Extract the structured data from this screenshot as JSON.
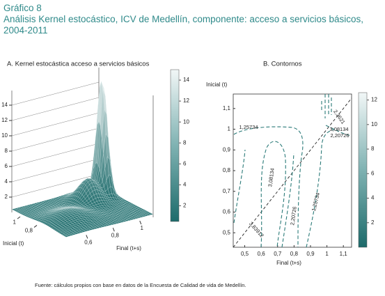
{
  "header": {
    "label": "Gráfico 8",
    "title": "Análisis Kernel estocástico, ICV de Medellín, componente: acceso a servicios básicos, 2004-2011"
  },
  "chart_data": [
    {
      "type": "surface",
      "title": "A. Kernel estocástica acceso a servicios básicos",
      "x_label": "Final (t+s)",
      "y_label": "Inicial (t)",
      "xlim": [
        0.45,
        1.1
      ],
      "ylim": [
        0.45,
        1.1
      ],
      "xticks": [
        {
          "value": 0.6,
          "label": "0,6"
        },
        {
          "value": 0.8,
          "label": "0,8"
        },
        1
      ],
      "yticks": [
        {
          "value": 0.8,
          "label": "0,8"
        },
        1
      ],
      "zlim": [
        0,
        15
      ],
      "zticks": [
        2,
        4,
        6,
        8,
        10,
        12,
        14
      ],
      "colorbar": {
        "lim": [
          0.5,
          15
        ],
        "ticks": [
          2,
          4,
          6,
          8,
          10,
          12,
          14
        ]
      },
      "color": "#1d6b6b"
    },
    {
      "type": "contour",
      "title": "B. Contornos",
      "x_label": "Final (t+s)",
      "y_label": "Inicial (t)",
      "xlim": [
        0.43,
        1.15
      ],
      "ylim": [
        0.43,
        1.17
      ],
      "xticks": [
        {
          "value": 0.5,
          "label": "0,5"
        },
        {
          "value": 0.6,
          "label": "0,6"
        },
        {
          "value": 0.7,
          "label": "0,7"
        },
        {
          "value": 0.8,
          "label": "0,8"
        },
        {
          "value": 0.9,
          "label": "0,9"
        },
        1,
        {
          "value": 1.1,
          "label": "1,1"
        }
      ],
      "yticks": [
        {
          "value": 0.5,
          "label": "0,5"
        },
        {
          "value": 0.6,
          "label": "0,6"
        },
        {
          "value": 0.7,
          "label": "0,7"
        },
        {
          "value": 0.8,
          "label": "0,8"
        },
        {
          "value": 0.9,
          "label": "0,9"
        },
        1,
        {
          "value": 1.1,
          "label": "1,1"
        }
      ],
      "levels": [
        {
          "value": 1.25734,
          "label": "1,25734"
        },
        {
          "value": 2.20726,
          "label": "2,20726"
        },
        {
          "value": 3.08134,
          "label": "3,08134"
        },
        {
          "value": 3.83912,
          "label": "3,83912"
        },
        {
          "value": 2.3621,
          "label": "2,3621"
        }
      ],
      "colorbar": {
        "lim": [
          0,
          12.6
        ],
        "ticks": [
          2,
          4,
          6,
          8,
          10,
          12
        ]
      },
      "color": "#2a7a78"
    }
  ],
  "footer": "Fuente: cálculos propios con base en datos de la Encuesta de Calidad de vida de Medellín."
}
